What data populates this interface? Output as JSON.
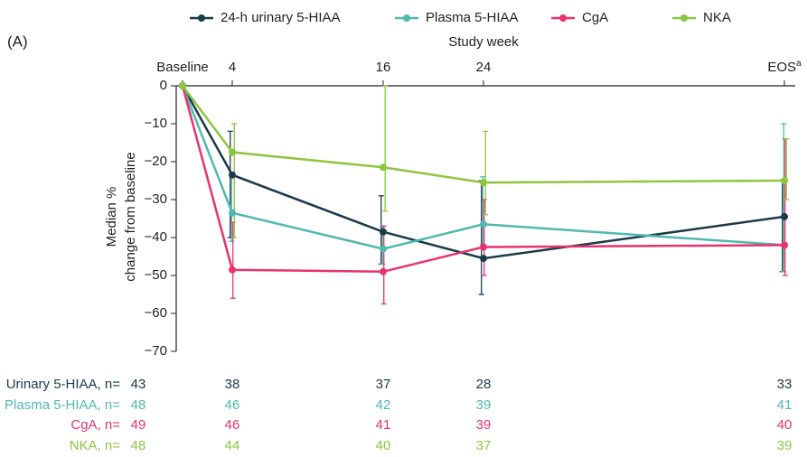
{
  "chart_data": {
    "type": "line",
    "panel_label": "(A)",
    "x_label": "Study week",
    "y_label": [
      "Median %",
      "change from baseline"
    ],
    "categories": [
      "Baseline",
      "4",
      "16",
      "24",
      "EOS"
    ],
    "category_note": "a",
    "ylim": [
      -70,
      0
    ],
    "yticks": [
      0,
      {
        "value": -10,
        "label": "−10"
      },
      {
        "value": -20,
        "label": "−20"
      },
      {
        "value": -30,
        "label": "−30"
      },
      {
        "value": -40,
        "label": "−40"
      },
      {
        "value": -50,
        "label": "−50"
      },
      {
        "value": -60,
        "label": "−60"
      },
      {
        "value": -70,
        "label": "−70"
      }
    ],
    "series": [
      {
        "name": "24-h urinary 5-HIAA",
        "color": "#1b3a4b",
        "values": [
          0,
          -23.5,
          -38.5,
          -45.5,
          -34.5
        ],
        "error_low": [
          null,
          -40,
          -47,
          -55,
          -49
        ],
        "error_high": [
          null,
          -12,
          -29,
          -25,
          -25
        ]
      },
      {
        "name": "Plasma 5-HIAA",
        "color": "#4fb8b0",
        "values": [
          0,
          -33.5,
          -43,
          -36.5,
          -42
        ],
        "error_low": [
          null,
          -41,
          -47,
          -42,
          -49
        ],
        "error_high": [
          null,
          -23,
          -37,
          -24,
          -10
        ]
      },
      {
        "name": "CgA",
        "color": "#e8336d",
        "values": [
          0,
          -48.5,
          -49,
          -42.5,
          -42
        ],
        "error_low": [
          null,
          -56,
          -57.5,
          -50,
          -50
        ],
        "error_high": [
          null,
          -36,
          -37,
          -30,
          -14
        ]
      },
      {
        "name": "NKA",
        "color": "#8cc63f",
        "values": [
          0,
          -17.5,
          -21.5,
          -25.5,
          -25
        ],
        "error_low": [
          null,
          -40,
          -33,
          -34,
          -30
        ],
        "error_high": [
          null,
          -10,
          0,
          -12,
          -14
        ]
      }
    ],
    "n_table": [
      {
        "label": "Urinary 5-HIAA, n=",
        "values": [
          43,
          38,
          37,
          28,
          33
        ]
      },
      {
        "label": "Plasma 5-HIAA, n=",
        "values": [
          48,
          46,
          42,
          39,
          41
        ]
      },
      {
        "label": "CgA, n=",
        "values": [
          49,
          46,
          41,
          39,
          40
        ]
      },
      {
        "label": "NKA, n=",
        "values": [
          48,
          44,
          40,
          37,
          39
        ]
      }
    ]
  }
}
